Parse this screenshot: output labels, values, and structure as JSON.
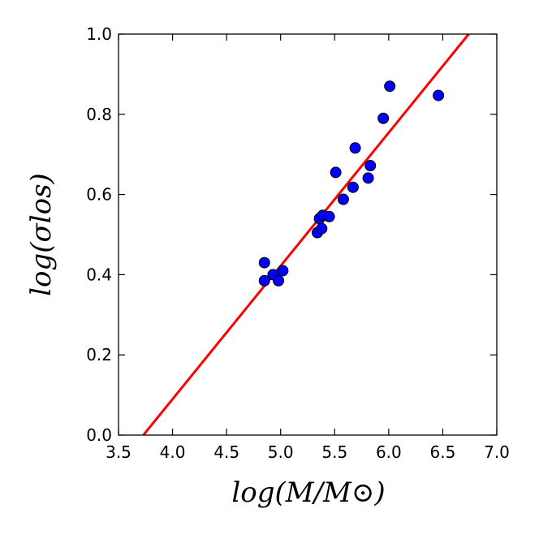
{
  "chart_data": {
    "type": "scatter",
    "title": "",
    "xlabel": "log(M/M⊙)",
    "ylabel": "log(σlos)",
    "xlim": [
      3.5,
      7.0
    ],
    "ylim": [
      0.0,
      1.0
    ],
    "x_ticks": [
      3.5,
      4.0,
      4.5,
      5.0,
      5.5,
      6.0,
      6.5,
      7.0
    ],
    "x_tick_labels": [
      "3.5",
      "4.0",
      "4.5",
      "5.0",
      "5.5",
      "6.0",
      "6.5",
      "7.0"
    ],
    "y_ticks": [
      0.0,
      0.2,
      0.4,
      0.6,
      0.8,
      1.0
    ],
    "y_tick_labels": [
      "0.0",
      "0.2",
      "0.4",
      "0.6",
      "0.8",
      "1.0"
    ],
    "grid": false,
    "series": [
      {
        "name": "data",
        "kind": "scatter",
        "color": "#0000ff",
        "points": [
          {
            "x": 4.85,
            "y": 0.43
          },
          {
            "x": 4.85,
            "y": 0.385
          },
          {
            "x": 4.93,
            "y": 0.4
          },
          {
            "x": 4.98,
            "y": 0.385
          },
          {
            "x": 5.02,
            "y": 0.41
          },
          {
            "x": 5.34,
            "y": 0.505
          },
          {
            "x": 5.36,
            "y": 0.54
          },
          {
            "x": 5.38,
            "y": 0.515
          },
          {
            "x": 5.39,
            "y": 0.548
          },
          {
            "x": 5.45,
            "y": 0.545
          },
          {
            "x": 5.51,
            "y": 0.655
          },
          {
            "x": 5.58,
            "y": 0.588
          },
          {
            "x": 5.67,
            "y": 0.618
          },
          {
            "x": 5.69,
            "y": 0.716
          },
          {
            "x": 5.81,
            "y": 0.641
          },
          {
            "x": 5.83,
            "y": 0.672
          },
          {
            "x": 5.95,
            "y": 0.79
          },
          {
            "x": 6.01,
            "y": 0.87
          },
          {
            "x": 6.46,
            "y": 0.847
          }
        ]
      },
      {
        "name": "fit",
        "kind": "line",
        "color": "#ff0000",
        "points": [
          {
            "x": 3.73,
            "y": 0.0
          },
          {
            "x": 6.74,
            "y": 1.0
          }
        ]
      }
    ]
  }
}
